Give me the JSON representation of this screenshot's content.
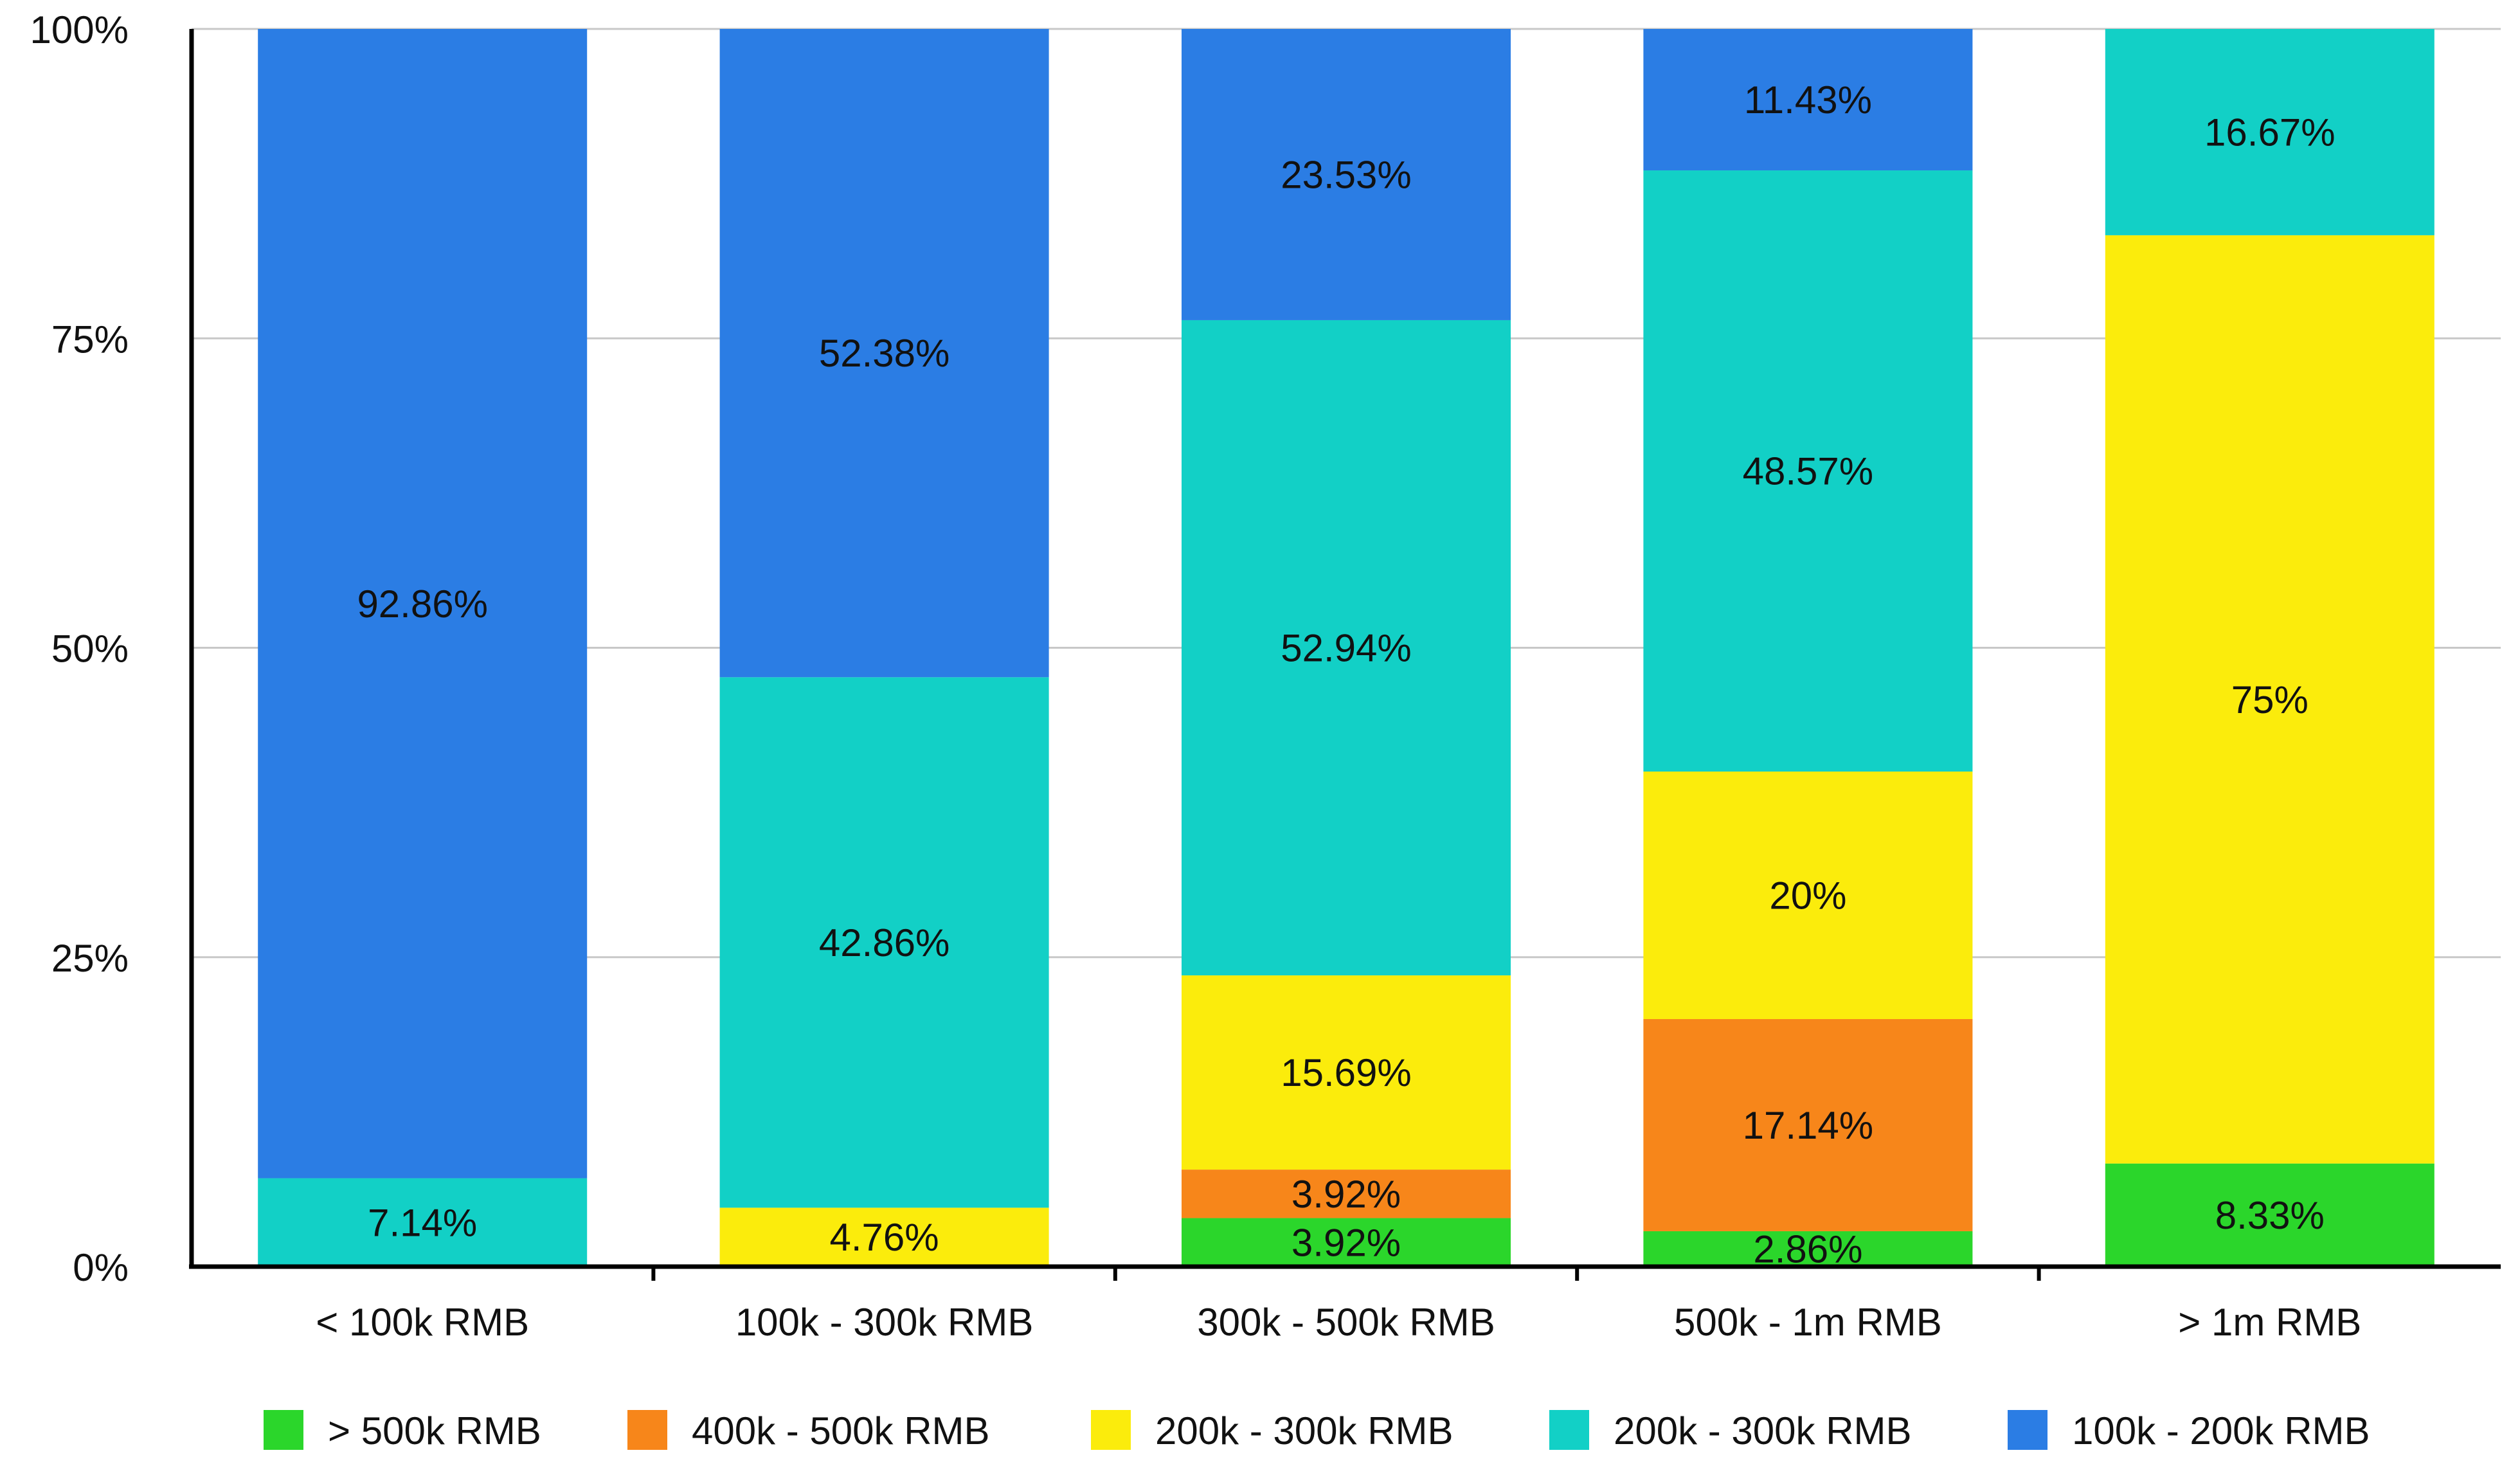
{
  "chart_data": {
    "type": "bar",
    "stacked": true,
    "title": "",
    "xlabel": "",
    "ylabel": "",
    "ylim": [
      0,
      100
    ],
    "y_ticks": [
      "0%",
      "25%",
      "50%",
      "75%",
      "100%"
    ],
    "y_tick_values": [
      0,
      25,
      50,
      75,
      100
    ],
    "grid": true,
    "legend_position": "bottom",
    "categories": [
      "< 100k RMB",
      "100k - 300k RMB",
      "300k - 500k RMB",
      "500k - 1m RMB",
      "> 1m RMB"
    ],
    "series": [
      {
        "name": "> 500k RMB",
        "color": "#2bd62b",
        "values": [
          0,
          0,
          3.92,
          2.86,
          8.33
        ],
        "labels": [
          "",
          "",
          "3.92%",
          "2.86%",
          "8.33%"
        ]
      },
      {
        "name": "400k - 500k RMB",
        "color": "#f7861a",
        "values": [
          0,
          0,
          3.92,
          17.14,
          0
        ],
        "labels": [
          "",
          "",
          "3.92%",
          "17.14%",
          ""
        ]
      },
      {
        "name": "200k - 300k RMB",
        "color": "#fbec0c",
        "values": [
          0,
          4.76,
          15.69,
          20,
          75
        ],
        "labels": [
          "",
          "4.76%",
          "15.69%",
          "20%",
          "75%"
        ]
      },
      {
        "name": "200k - 300k RMB",
        "color": "#12d0c6",
        "values": [
          7.14,
          42.86,
          52.94,
          48.57,
          16.67
        ],
        "labels": [
          "7.14%",
          "42.86%",
          "52.94%",
          "48.57%",
          "16.67%"
        ]
      },
      {
        "name": "100k - 200k RMB",
        "color": "#2b7de4",
        "values": [
          92.86,
          52.38,
          23.53,
          11.43,
          0
        ],
        "labels": [
          "92.86%",
          "52.38%",
          "23.53%",
          "11.43%",
          ""
        ]
      }
    ]
  }
}
